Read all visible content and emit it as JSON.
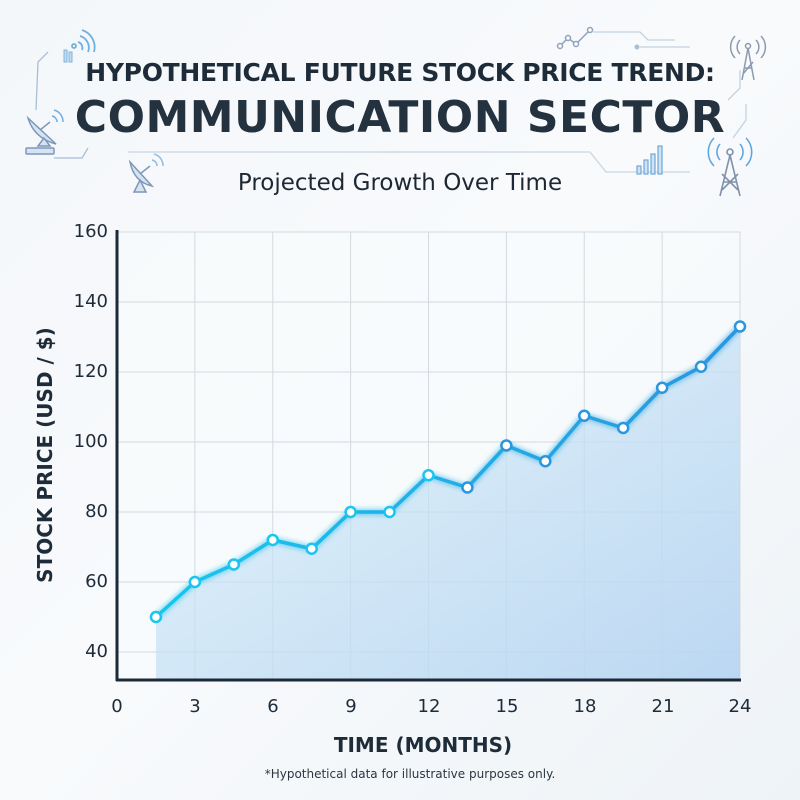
{
  "header": {
    "title_line1": "HYPOTHETICAL FUTURE STOCK PRICE TREND:",
    "title_line2": "COMMUNICATION SECTOR",
    "subtitle": "Projected Growth Over Time"
  },
  "axes": {
    "ylabel": "STOCK PRICE (USD / $)",
    "xlabel": "TIME (MONTHS)",
    "yticks": [
      "160",
      "140",
      "120",
      "100",
      "80",
      "60",
      "40"
    ],
    "xticks": [
      "0",
      "3",
      "6",
      "9",
      "12",
      "15",
      "18",
      "21",
      "24"
    ]
  },
  "footnote": "*Hypothetical data for illustrative purposes only.",
  "decorations": {
    "icons": [
      "satellite-dish-icon",
      "wifi-signal-icon",
      "radio-tower-icon",
      "bar-chart-icon",
      "line-chart-icon"
    ]
  },
  "colors": {
    "line_start": "#18c6ee",
    "line_end": "#2a96de",
    "fill": "#bcd9f2",
    "axis": "#1c2a38",
    "grid": "#d4d9de"
  },
  "chart_data": {
    "type": "line",
    "title": "HYPOTHETICAL FUTURE STOCK PRICE TREND: COMMUNICATION SECTOR",
    "subtitle": "Projected Growth Over Time",
    "xlabel": "TIME (MONTHS)",
    "ylabel": "STOCK PRICE (USD / $)",
    "x": [
      1.5,
      3,
      4.5,
      6,
      7.5,
      9,
      10.5,
      12,
      13.5,
      15,
      16.5,
      18,
      19.5,
      21,
      22.5,
      24
    ],
    "series": [
      {
        "name": "Stock Price",
        "values": [
          50,
          60,
          65,
          72,
          69.5,
          80,
          80,
          90.5,
          87,
          99,
          94.5,
          107.5,
          104,
          115.5,
          121.5,
          133
        ]
      }
    ],
    "xlim": [
      0,
      24
    ],
    "ylim": [
      32,
      160
    ],
    "xticks": [
      0,
      3,
      6,
      9,
      12,
      15,
      18,
      21,
      24
    ],
    "yticks": [
      40,
      60,
      80,
      100,
      120,
      140,
      160
    ],
    "grid": true,
    "area_fill": true,
    "markers": "hollow-circle",
    "legend": null,
    "annotations": [
      "*Hypothetical data for illustrative purposes only."
    ]
  }
}
